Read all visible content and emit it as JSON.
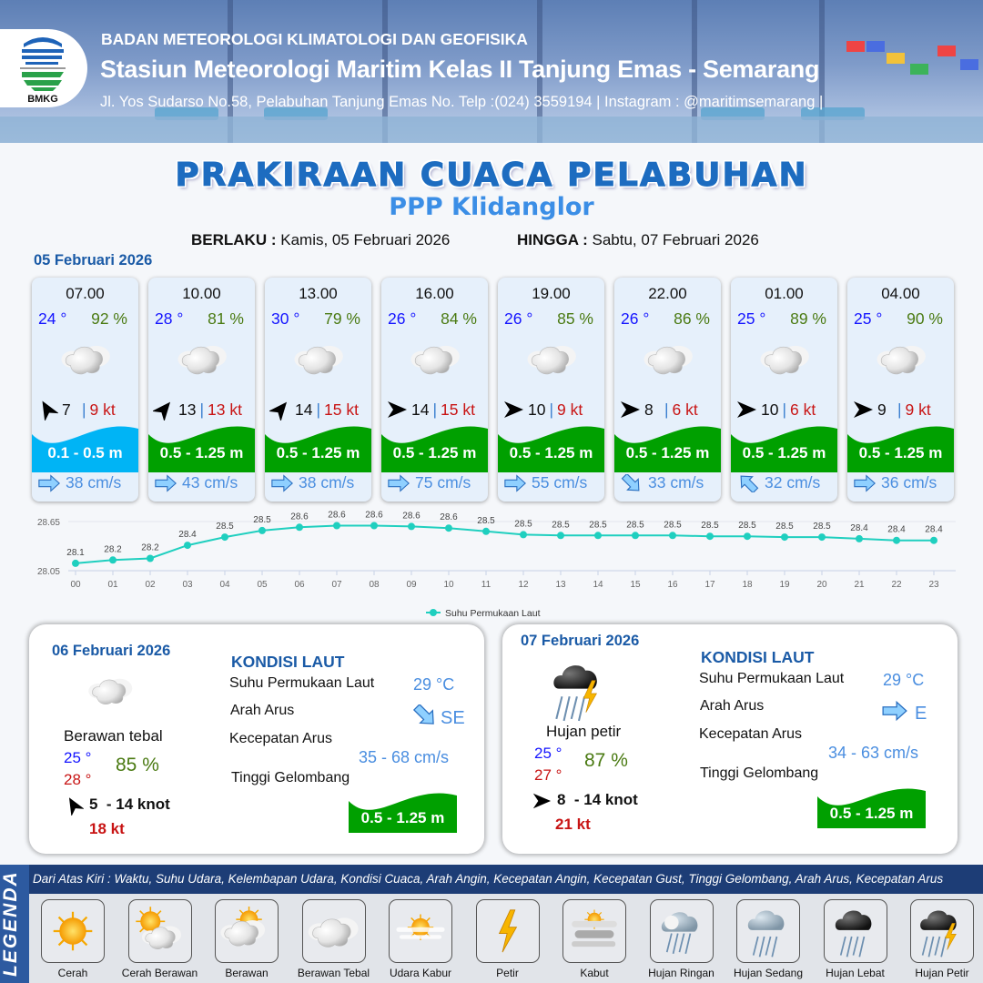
{
  "header": {
    "logo_text": "BMKG",
    "agency": "BADAN METEOROLOGI KLIMATOLOGI DAN GEOFISIKA",
    "station": "Stasiun Meteorologi Maritim Kelas II Tanjung Emas - Semarang",
    "contact": "Jl. Yos Sudarso No.58, Pelabuhan Tanjung Emas No. Telp :(024) 3559194 | Instagram : @maritimsemarang |"
  },
  "title": "PRAKIRAAN CUACA PELABUHAN",
  "subtitle": "PPP Klidanglor",
  "validity": {
    "from_label": "BERLAKU :",
    "from": "Kamis, 05 Februari 2026",
    "to_label": "HINGGA :",
    "to": "Sabtu, 07 Februari 2026"
  },
  "day1": {
    "date": "05 Februari 2026",
    "cards": [
      {
        "time": "07.00",
        "temp": "24 °",
        "hum": "92 %",
        "weather": "berawan-tebal",
        "wind_deg": -120,
        "wind": "7",
        "gust": "9 kt",
        "wave": "0.1 - 0.5 m",
        "wave_color": "#00b4f5",
        "cur_deg": 0,
        "current": "38 cm/s"
      },
      {
        "time": "10.00",
        "temp": "28 °",
        "hum": "81 %",
        "weather": "berawan-tebal",
        "wind_deg": -50,
        "wind": "13",
        "gust": "13 kt",
        "wave": "0.5 - 1.25 m",
        "wave_color": "#00a000",
        "cur_deg": 0,
        "current": "43 cm/s"
      },
      {
        "time": "13.00",
        "temp": "30 °",
        "hum": "79 %",
        "weather": "berawan-tebal",
        "wind_deg": -50,
        "wind": "14",
        "gust": "15 kt",
        "wave": "0.5 - 1.25 m",
        "wave_color": "#00a000",
        "cur_deg": 0,
        "current": "38 cm/s"
      },
      {
        "time": "16.00",
        "temp": "26 °",
        "hum": "84 %",
        "weather": "berawan-tebal",
        "wind_deg": 0,
        "wind": "14",
        "gust": "15 kt",
        "wave": "0.5 - 1.25 m",
        "wave_color": "#00a000",
        "cur_deg": 0,
        "current": "75 cm/s"
      },
      {
        "time": "19.00",
        "temp": "26 °",
        "hum": "85 %",
        "weather": "berawan-tebal",
        "wind_deg": 0,
        "wind": "10",
        "gust": "9 kt",
        "wave": "0.5 - 1.25 m",
        "wave_color": "#00a000",
        "cur_deg": 0,
        "current": "55 cm/s"
      },
      {
        "time": "22.00",
        "temp": "26 °",
        "hum": "86 %",
        "weather": "berawan-tebal",
        "wind_deg": 0,
        "wind": "8",
        "gust": "6 kt",
        "wave": "0.5 - 1.25 m",
        "wave_color": "#00a000",
        "cur_deg": 45,
        "current": "33 cm/s"
      },
      {
        "time": "01.00",
        "temp": "25 °",
        "hum": "89 %",
        "weather": "berawan-tebal",
        "wind_deg": 0,
        "wind": "10",
        "gust": "6 kt",
        "wave": "0.5 - 1.25 m",
        "wave_color": "#00a000",
        "cur_deg": -135,
        "current": "32 cm/s"
      },
      {
        "time": "04.00",
        "temp": "25 °",
        "hum": "90 %",
        "weather": "berawan-tebal",
        "wind_deg": 0,
        "wind": "9",
        "gust": "9 kt",
        "wave": "0.5 - 1.25 m",
        "wave_color": "#00a000",
        "cur_deg": 0,
        "current": "36 cm/s"
      }
    ]
  },
  "chart_data": {
    "type": "line",
    "x": [
      "00",
      "01",
      "02",
      "03",
      "04",
      "05",
      "06",
      "07",
      "08",
      "09",
      "10",
      "11",
      "12",
      "13",
      "14",
      "15",
      "16",
      "17",
      "18",
      "19",
      "20",
      "21",
      "22",
      "23"
    ],
    "series": [
      {
        "name": "Suhu Permukaan Laut",
        "color": "#1fcfbf",
        "values": [
          28.14,
          28.18,
          28.2,
          28.36,
          28.46,
          28.54,
          28.58,
          28.6,
          28.6,
          28.59,
          28.57,
          28.53,
          28.49,
          28.48,
          28.48,
          28.48,
          28.48,
          28.47,
          28.47,
          28.46,
          28.46,
          28.44,
          28.42,
          28.42
        ],
        "labels": [
          "28.1",
          "28.2",
          "28.2",
          "28.4",
          "28.5",
          "28.5",
          "28.6",
          "28.6",
          "28.6",
          "28.6",
          "28.6",
          "28.5",
          "28.5",
          "28.5",
          "28.5",
          "28.5",
          "28.5",
          "28.5",
          "28.5",
          "28.5",
          "28.5",
          "28.4",
          "28.4",
          "28.4"
        ]
      }
    ],
    "yticks": [
      "28.65",
      "28.05"
    ],
    "ylim": [
      28.05,
      28.65
    ],
    "grid": true,
    "legend": "bottom"
  },
  "panels": [
    {
      "date": "06 Februari 2026",
      "weather": "berawan-tebal",
      "weather_label": "Berawan tebal",
      "tmin": "25 °",
      "tmax": "28 °",
      "hum": "85 %",
      "wind_deg": -120,
      "wind": "5  - 14 knot",
      "gust": "18 kt",
      "sea_title": "KONDISI LAUT",
      "sst_label": "Suhu Permukaan Laut",
      "sst": "29 °C",
      "dir_label": "Arah Arus",
      "dir": "SE",
      "cur_deg": 45,
      "speed_label": "Kecepatan Arus",
      "speed": "35 - 68 cm/s",
      "wave_label": "Tinggi Gelombang",
      "wave": "0.5 - 1.25 m"
    },
    {
      "date": "07 Februari 2026",
      "weather": "hujan-petir",
      "weather_label": "Hujan petir",
      "tmin": "25 °",
      "tmax": "27 °",
      "hum": "87 %",
      "wind_deg": 0,
      "wind": "8  - 14 knot",
      "gust": "21 kt",
      "sea_title": "KONDISI LAUT",
      "sst_label": "Suhu Permukaan Laut",
      "sst": "29 °C",
      "dir_label": "Arah Arus",
      "dir": "E",
      "cur_deg": 0,
      "speed_label": "Kecepatan Arus",
      "speed": "34 - 63 cm/s",
      "wave_label": "Tinggi Gelombang",
      "wave": "0.5 - 1.25 m"
    }
  ],
  "legend": {
    "title": "LEGENDA",
    "text": "Dari Atas Kiri : Waktu, Suhu Udara, Kelembapan Udara, Kondisi Cuaca, Arah Angin, Kecepatan Angin, Kecepatan Gust, Tinggi Gelombang, Arah Arus, Kecepatan Arus",
    "items": [
      {
        "label": "Cerah",
        "icon": "cerah"
      },
      {
        "label": "Cerah Berawan",
        "icon": "cerah-berawan"
      },
      {
        "label": "Berawan",
        "icon": "berawan"
      },
      {
        "label": "Berawan Tebal",
        "icon": "berawan-tebal"
      },
      {
        "label": "Udara Kabur",
        "icon": "udara-kabur"
      },
      {
        "label": "Petir",
        "icon": "petir"
      },
      {
        "label": "Kabut",
        "icon": "kabut"
      },
      {
        "label": "Hujan Ringan",
        "icon": "hujan-ringan"
      },
      {
        "label": "Hujan Sedang",
        "icon": "hujan-sedang"
      },
      {
        "label": "Hujan Lebat",
        "icon": "hujan-lebat"
      },
      {
        "label": "Hujan Petir",
        "icon": "hujan-petir"
      }
    ]
  }
}
